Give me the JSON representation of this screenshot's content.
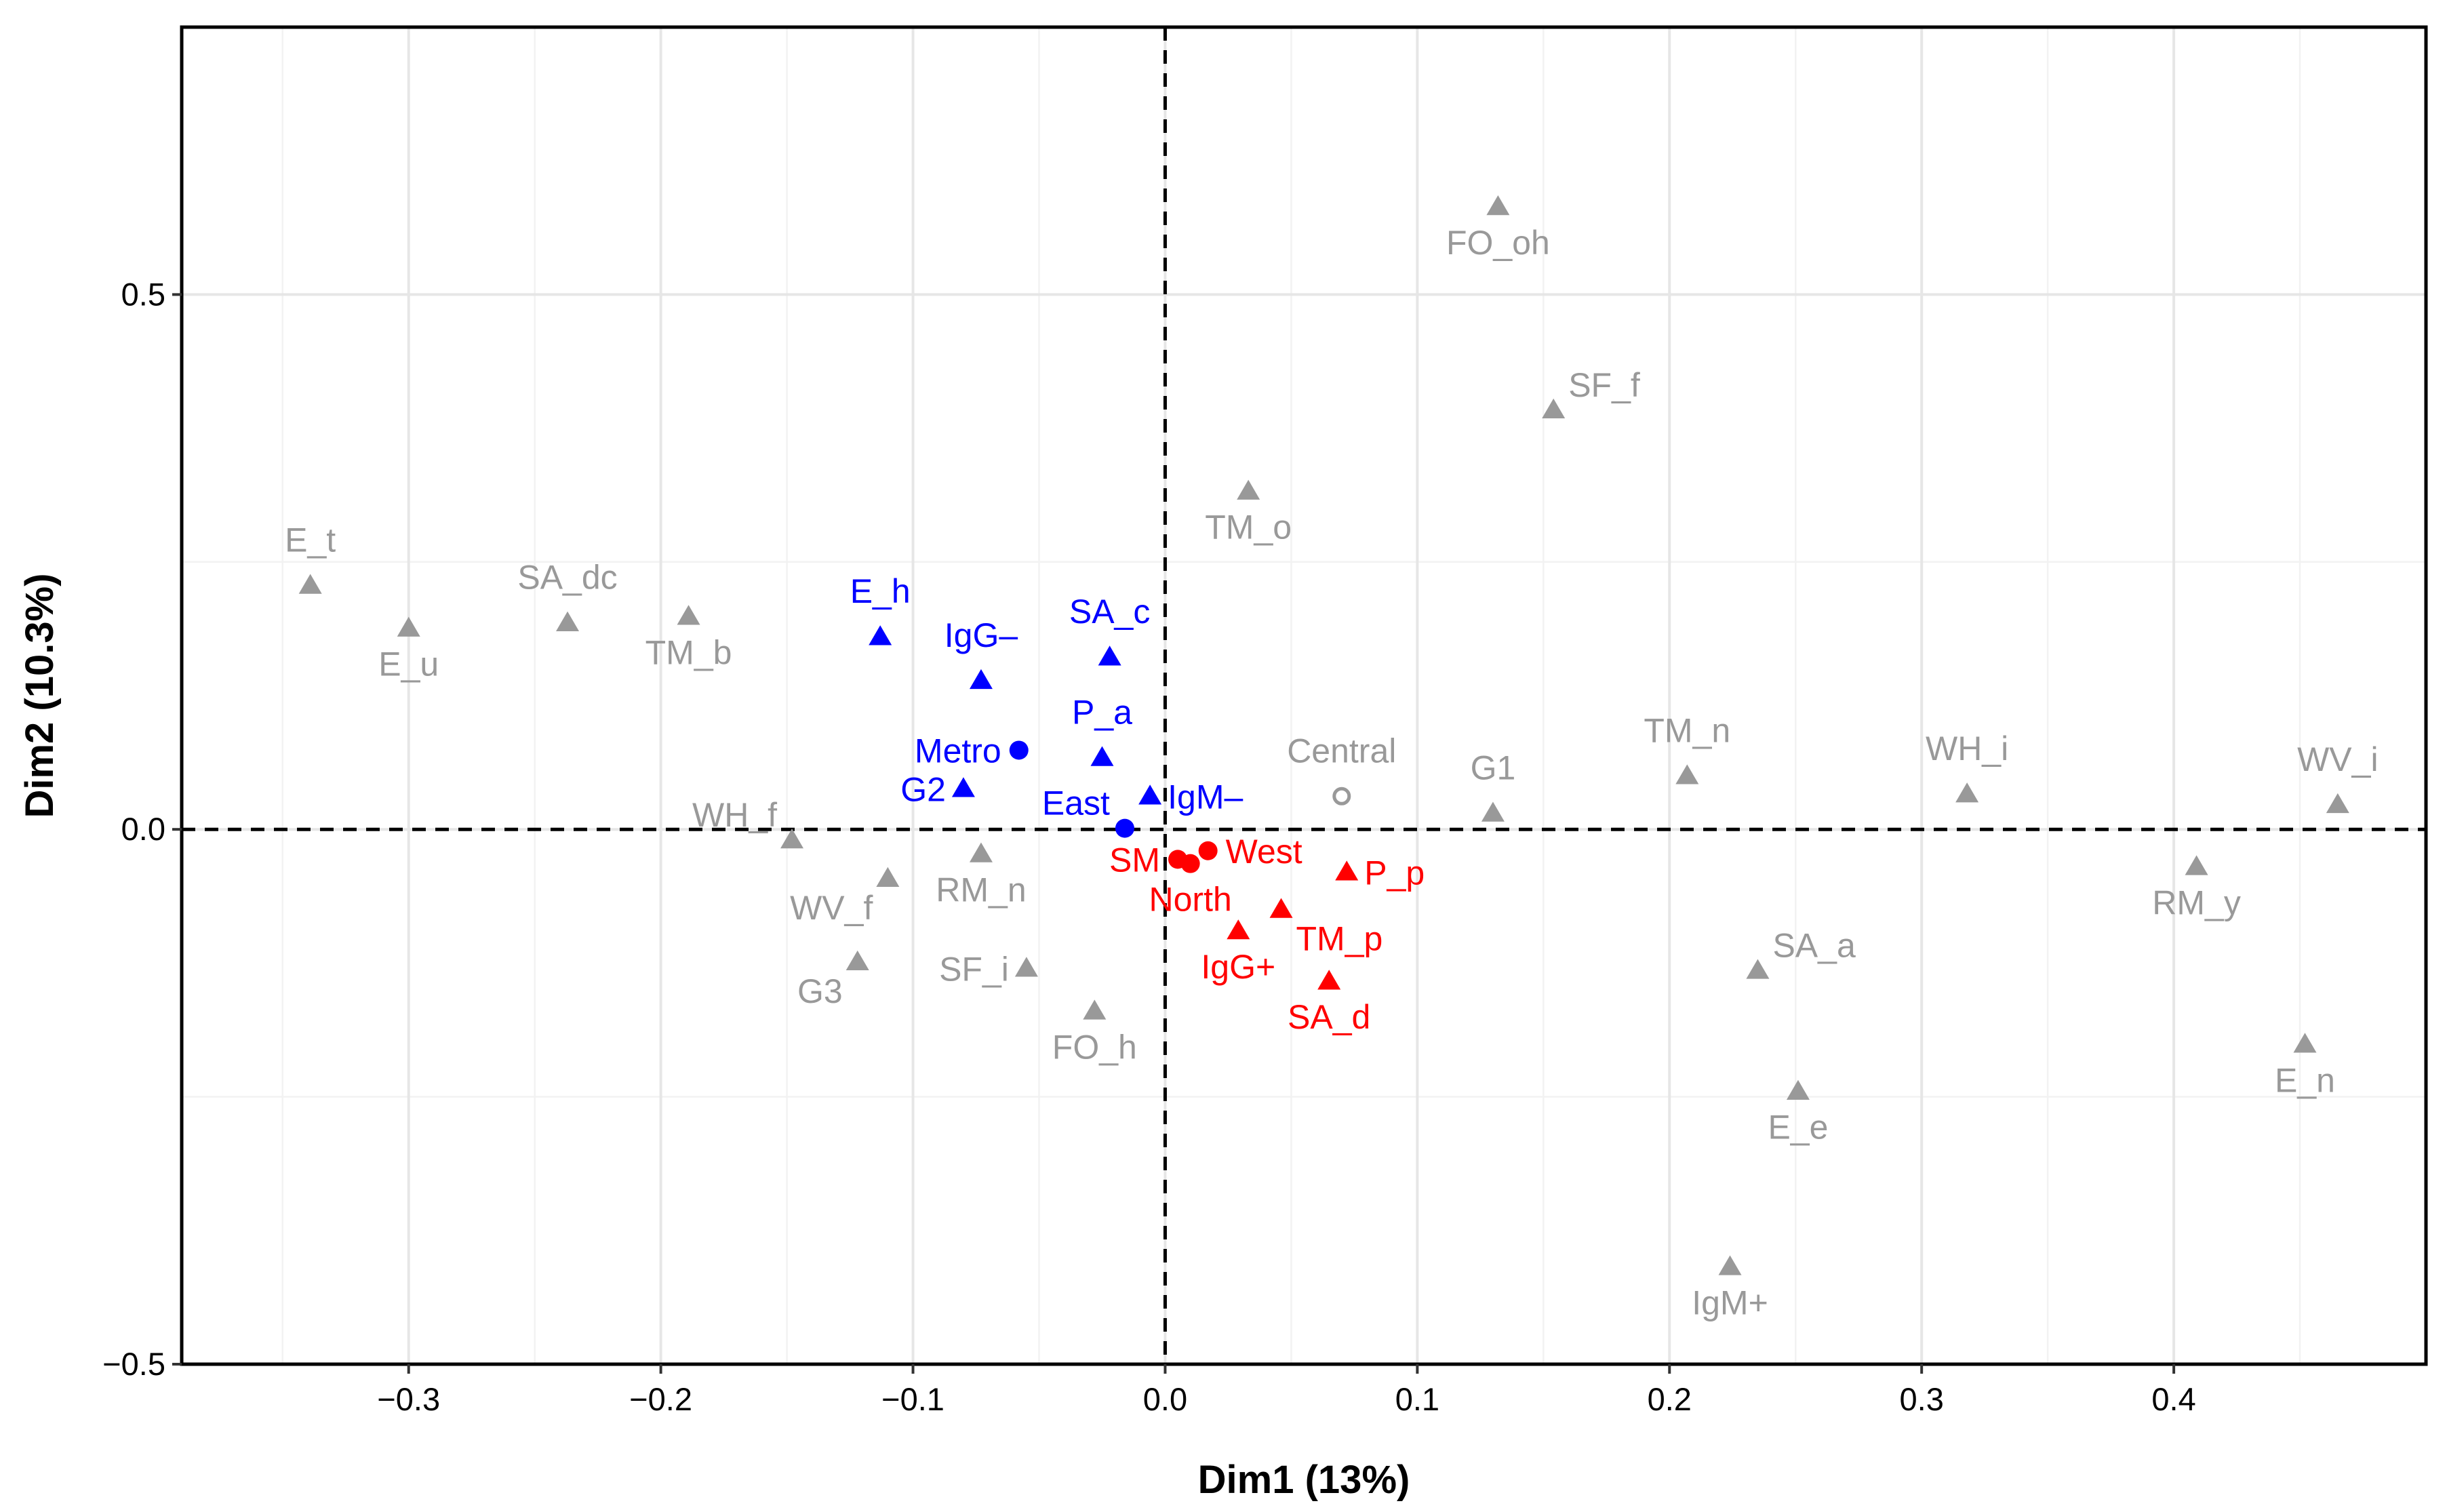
{
  "chart_data": {
    "type": "scatter",
    "title": "",
    "xlabel": "Dim1 (13%)",
    "ylabel": "Dim2 (10.3%)",
    "xlim": [
      -0.39,
      0.5
    ],
    "ylim": [
      -0.5,
      0.75
    ],
    "x_ticks": [
      -0.3,
      -0.2,
      -0.1,
      0.0,
      0.1,
      0.2,
      0.3,
      0.4
    ],
    "x_tick_labels": [
      "−0.3",
      "−0.2",
      "−0.1",
      "0.0",
      "0.1",
      "0.2",
      "0.3",
      "0.4"
    ],
    "y_ticks": [
      -0.5,
      0.0,
      0.5
    ],
    "y_tick_labels": [
      "−0.5",
      "0.0",
      "0.5"
    ],
    "x_minor_grid": [
      -0.35,
      -0.25,
      -0.15,
      -0.05,
      0.05,
      0.15,
      0.25,
      0.35,
      0.45
    ],
    "y_minor_grid": [
      -0.25,
      0.25
    ],
    "grid": true,
    "reference_lines": {
      "x": 0,
      "y": 0,
      "style": "dashed"
    },
    "colors": {
      "grey": "#999999",
      "blue": "#0000FF",
      "red": "#FF0000"
    },
    "points": [
      {
        "label": "E_t",
        "x": -0.339,
        "y": 0.228,
        "shape": "triangle",
        "color": "grey",
        "label_pos": "above"
      },
      {
        "label": "E_u",
        "x": -0.3,
        "y": 0.188,
        "shape": "triangle",
        "color": "grey",
        "label_pos": "below"
      },
      {
        "label": "SA_dc",
        "x": -0.237,
        "y": 0.193,
        "shape": "triangle",
        "color": "grey",
        "label_pos": "above"
      },
      {
        "label": "TM_b",
        "x": -0.189,
        "y": 0.199,
        "shape": "triangle",
        "color": "grey",
        "label_pos": "below"
      },
      {
        "label": "FO_oh",
        "x": 0.132,
        "y": 0.582,
        "shape": "triangle",
        "color": "grey",
        "label_pos": "below"
      },
      {
        "label": "SF_f",
        "x": 0.154,
        "y": 0.392,
        "shape": "triangle",
        "color": "grey",
        "label_pos": "upper-right"
      },
      {
        "label": "TM_o",
        "x": 0.033,
        "y": 0.316,
        "shape": "triangle",
        "color": "grey",
        "label_pos": "below"
      },
      {
        "label": "Central",
        "x": 0.07,
        "y": 0.031,
        "shape": "open-circle",
        "color": "grey",
        "label_pos": "above"
      },
      {
        "label": "G1",
        "x": 0.13,
        "y": 0.015,
        "shape": "triangle",
        "color": "grey",
        "label_pos": "above"
      },
      {
        "label": "TM_n",
        "x": 0.207,
        "y": 0.05,
        "shape": "triangle",
        "color": "grey",
        "label_pos": "above"
      },
      {
        "label": "WH_i",
        "x": 0.318,
        "y": 0.033,
        "shape": "triangle",
        "color": "grey",
        "label_pos": "above"
      },
      {
        "label": "WV_i",
        "x": 0.465,
        "y": 0.023,
        "shape": "triangle",
        "color": "grey",
        "label_pos": "above"
      },
      {
        "label": "RM_y",
        "x": 0.409,
        "y": -0.035,
        "shape": "triangle",
        "color": "grey",
        "label_pos": "below"
      },
      {
        "label": "SA_a",
        "x": 0.235,
        "y": -0.132,
        "shape": "triangle",
        "color": "grey",
        "label_pos": "upper-right"
      },
      {
        "label": "E_e",
        "x": 0.251,
        "y": -0.245,
        "shape": "triangle",
        "color": "grey",
        "label_pos": "below"
      },
      {
        "label": "E_n",
        "x": 0.452,
        "y": -0.201,
        "shape": "triangle",
        "color": "grey",
        "label_pos": "below"
      },
      {
        "label": "IgM+",
        "x": 0.224,
        "y": -0.409,
        "shape": "triangle",
        "color": "grey",
        "label_pos": "below"
      },
      {
        "label": "WH_f",
        "x": -0.148,
        "y": -0.01,
        "shape": "triangle",
        "color": "grey",
        "label_pos": "upper-left"
      },
      {
        "label": "WV_f",
        "x": -0.11,
        "y": -0.046,
        "shape": "triangle",
        "color": "grey",
        "label_pos": "lower-left"
      },
      {
        "label": "RM_n",
        "x": -0.073,
        "y": -0.023,
        "shape": "triangle",
        "color": "grey",
        "label_pos": "below"
      },
      {
        "label": "G3",
        "x": -0.122,
        "y": -0.124,
        "shape": "triangle",
        "color": "grey",
        "label_pos": "lower-left"
      },
      {
        "label": "SF_i",
        "x": -0.055,
        "y": -0.13,
        "shape": "triangle",
        "color": "grey",
        "label_pos": "left"
      },
      {
        "label": "FO_h",
        "x": -0.028,
        "y": -0.17,
        "shape": "triangle",
        "color": "grey",
        "label_pos": "below"
      },
      {
        "label": "E_h",
        "x": -0.113,
        "y": 0.18,
        "shape": "triangle",
        "color": "blue",
        "label_pos": "above"
      },
      {
        "label": "IgG–",
        "x": -0.073,
        "y": 0.139,
        "shape": "triangle",
        "color": "blue",
        "label_pos": "above"
      },
      {
        "label": "SA_c",
        "x": -0.022,
        "y": 0.161,
        "shape": "triangle",
        "color": "blue",
        "label_pos": "above"
      },
      {
        "label": "Metro",
        "x": -0.058,
        "y": 0.074,
        "shape": "circle",
        "color": "blue",
        "label_pos": "left"
      },
      {
        "label": "P_a",
        "x": -0.025,
        "y": 0.067,
        "shape": "triangle",
        "color": "blue",
        "label_pos": "above"
      },
      {
        "label": "G2",
        "x": -0.08,
        "y": 0.038,
        "shape": "triangle",
        "color": "blue",
        "label_pos": "left"
      },
      {
        "label": "IgM–",
        "x": -0.006,
        "y": 0.031,
        "shape": "triangle",
        "color": "blue",
        "label_pos": "right"
      },
      {
        "label": "East",
        "x": -0.016,
        "y": 0.001,
        "shape": "circle",
        "color": "blue",
        "label_pos": "upper-left"
      },
      {
        "label": "SM",
        "x": 0.005,
        "y": -0.028,
        "shape": "circle",
        "color": "red",
        "label_pos": "left"
      },
      {
        "label": "North",
        "x": 0.01,
        "y": -0.032,
        "shape": "circle",
        "color": "red",
        "label_pos": "below"
      },
      {
        "label": "West",
        "x": 0.017,
        "y": -0.02,
        "shape": "circle",
        "color": "red",
        "label_pos": "right"
      },
      {
        "label": "P_p",
        "x": 0.072,
        "y": -0.04,
        "shape": "triangle",
        "color": "red",
        "label_pos": "right"
      },
      {
        "label": "TM_p",
        "x": 0.046,
        "y": -0.075,
        "shape": "triangle",
        "color": "red",
        "label_pos": "lower-right"
      },
      {
        "label": "IgG+",
        "x": 0.029,
        "y": -0.095,
        "shape": "triangle",
        "color": "red",
        "label_pos": "below"
      },
      {
        "label": "SA_d",
        "x": 0.065,
        "y": -0.142,
        "shape": "triangle",
        "color": "red",
        "label_pos": "below"
      }
    ]
  }
}
